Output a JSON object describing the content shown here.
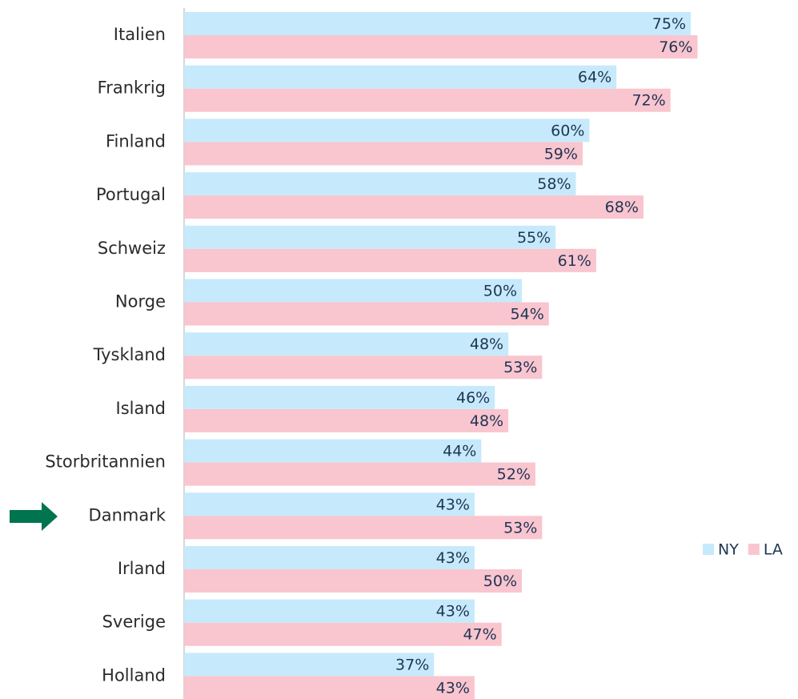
{
  "chart_data": {
    "type": "bar",
    "orientation": "horizontal",
    "categories": [
      "Italien",
      "Frankrig",
      "Finland",
      "Portugal",
      "Schweiz",
      "Norge",
      "Tyskland",
      "Island",
      "Storbritannien",
      "Danmark",
      "Irland",
      "Sverige",
      "Holland"
    ],
    "series": [
      {
        "name": "NY",
        "color": "#c6eafb",
        "values": [
          75,
          64,
          60,
          58,
          55,
          50,
          48,
          46,
          44,
          43,
          43,
          43,
          37
        ],
        "value_labels": [
          "75%",
          "64%",
          "60%",
          "58%",
          "55%",
          "50%",
          "48%",
          "46%",
          "44%",
          "43%",
          "43%",
          "43%",
          "37%"
        ]
      },
      {
        "name": "LA",
        "color": "#f9c5cf",
        "values": [
          76,
          72,
          59,
          68,
          61,
          54,
          53,
          48,
          52,
          53,
          50,
          47,
          43
        ],
        "value_labels": [
          "76%",
          "72%",
          "59%",
          "68%",
          "61%",
          "54%",
          "53%",
          "48%",
          "52%",
          "53%",
          "50%",
          "47%",
          "43%"
        ]
      }
    ],
    "legend": "right"
  }
}
